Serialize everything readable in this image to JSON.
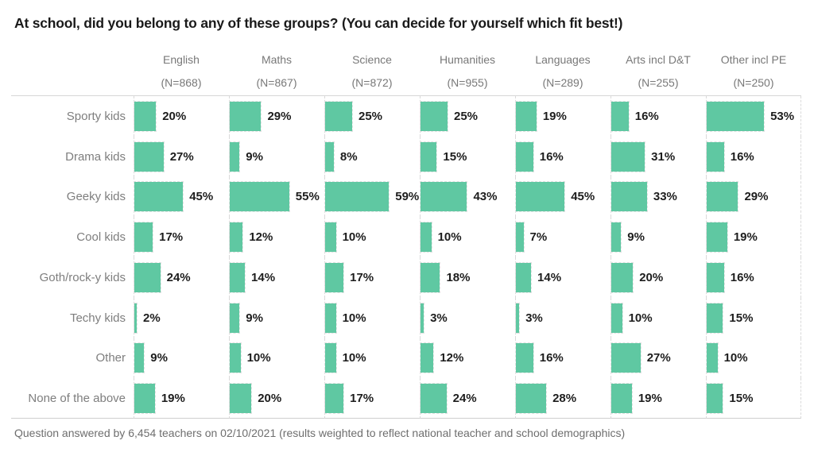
{
  "title": "At school, did you belong to any of these groups? (You can decide for yourself which fit best!)",
  "footnote": "Question answered by 6,454 teachers on 02/10/2021 (results weighted to reflect national teacher and school demographics)",
  "colors": {
    "bar": "#5fc8a2",
    "title_text": "#1a1a1a",
    "header_text": "#787878",
    "row_label_text": "#7e7e7e",
    "value_text": "#1d1d1d",
    "grid_dashed": "#dadada",
    "grid_solid": "#d6d6d6",
    "footnote_text": "#6e6e6e"
  },
  "chart_data": {
    "type": "bar",
    "orientation": "horizontal",
    "title": "At school, did you belong to any of these groups? (You can decide for yourself which fit best!)",
    "value_suffix": "%",
    "value_range": [
      0,
      60
    ],
    "categories": [
      "Sporty kids",
      "Drama kids",
      "Geeky kids",
      "Cool kids",
      "Goth/rock-y kids",
      "Techy kids",
      "Other",
      "None of the above"
    ],
    "columns": [
      {
        "label": "English",
        "n_label": "(N=868)"
      },
      {
        "label": "Maths",
        "n_label": "(N=867)"
      },
      {
        "label": "Science",
        "n_label": "(N=872)"
      },
      {
        "label": "Humanities",
        "n_label": "(N=955)"
      },
      {
        "label": "Languages",
        "n_label": "(N=289)"
      },
      {
        "label": "Arts incl D&T",
        "n_label": "(N=255)"
      },
      {
        "label": "Other incl PE",
        "n_label": "(N=250)"
      }
    ],
    "series": [
      {
        "name": "English",
        "values": [
          20,
          27,
          45,
          17,
          24,
          2,
          9,
          19
        ]
      },
      {
        "name": "Maths",
        "values": [
          29,
          9,
          55,
          12,
          14,
          9,
          10,
          20
        ]
      },
      {
        "name": "Science",
        "values": [
          25,
          8,
          59,
          10,
          17,
          10,
          10,
          17
        ]
      },
      {
        "name": "Humanities",
        "values": [
          25,
          15,
          43,
          10,
          18,
          3,
          12,
          24
        ]
      },
      {
        "name": "Languages",
        "values": [
          19,
          16,
          45,
          7,
          14,
          3,
          16,
          28
        ]
      },
      {
        "name": "Arts incl D&T",
        "values": [
          16,
          31,
          33,
          9,
          20,
          10,
          27,
          19
        ]
      },
      {
        "name": "Other incl PE",
        "values": [
          53,
          16,
          29,
          19,
          16,
          15,
          10,
          15
        ]
      }
    ]
  }
}
